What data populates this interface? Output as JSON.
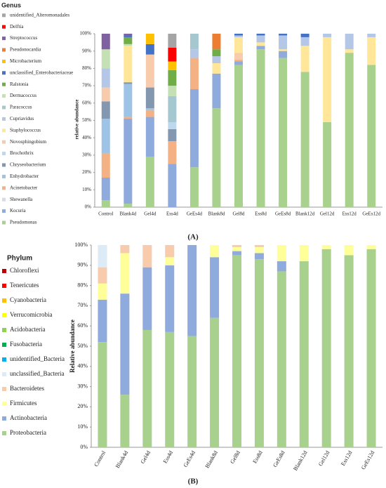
{
  "chart_data": [
    {
      "type": "stacked_bar",
      "legend_title": "Genus",
      "y_label": "relative abundance",
      "panel_label": "(A)",
      "categories": [
        "Control",
        "Blank4d",
        "Gel4d",
        "Ess4d",
        "GeEs4d",
        "Blank8d",
        "Gel8d",
        "Ess8d",
        "GeEs8d",
        "Blank12d",
        "Gel12d",
        "Ess12d",
        "GeEs12d"
      ],
      "ylim": [
        0,
        100
      ],
      "yticks": [
        {
          "value": 0,
          "label": "0%"
        },
        {
          "value": 10,
          "label": "10%"
        },
        {
          "value": 20,
          "label": "20%"
        },
        {
          "value": 30,
          "label": "30%"
        },
        {
          "value": 40,
          "label": "40%"
        },
        {
          "value": 50,
          "label": "50%"
        },
        {
          "value": 60,
          "label": "60%"
        },
        {
          "value": 70,
          "label": "70%"
        },
        {
          "value": 80,
          "label": "80%"
        },
        {
          "value": 90,
          "label": "90%"
        },
        {
          "value": 100,
          "label": "100%"
        }
      ],
      "series": [
        {
          "name": "Pseudomonas",
          "color": "#a9d18e",
          "values": [
            4,
            2,
            29,
            0,
            23,
            57,
            82,
            91,
            86,
            78,
            49,
            89,
            82
          ]
        },
        {
          "name": "Kocuria",
          "color": "#8faadc",
          "values": [
            13,
            49,
            23,
            25,
            45,
            20,
            2,
            2,
            4,
            0,
            0,
            0,
            0
          ]
        },
        {
          "name": "Shewanella",
          "color": "#d6dce5",
          "values": [
            0,
            0,
            0,
            0,
            0,
            0,
            0,
            0,
            0,
            0,
            0,
            0,
            0
          ]
        },
        {
          "name": "Acinetobacter",
          "color": "#f4b183",
          "values": [
            14,
            1,
            4,
            13,
            18,
            0,
            1,
            0,
            0,
            0,
            0,
            0,
            0
          ]
        },
        {
          "name": "Enhydrobacter",
          "color": "#9dc3e6",
          "values": [
            20,
            19,
            1,
            0,
            0,
            0,
            0,
            0,
            0,
            0,
            0,
            0,
            0
          ]
        },
        {
          "name": "Chryseobacterium",
          "color": "#8497b0",
          "values": [
            10,
            1,
            12,
            7,
            0,
            0,
            0,
            0,
            0,
            0,
            0,
            0,
            0
          ]
        },
        {
          "name": "Brochothrix",
          "color": "#bdd7ee",
          "values": [
            0,
            0,
            0,
            4,
            0,
            0,
            0,
            0,
            0,
            0,
            0,
            0,
            0
          ]
        },
        {
          "name": "Novosphingobium",
          "color": "#f8cbad",
          "values": [
            8,
            0,
            19,
            0,
            0,
            0,
            4,
            0,
            0,
            0,
            0,
            0,
            0
          ]
        },
        {
          "name": "Staphylococcus",
          "color": "#ffe699",
          "values": [
            0,
            21,
            0,
            0,
            0,
            6,
            9,
            2,
            1,
            15,
            49,
            2,
            16
          ]
        },
        {
          "name": "Cupriavidus",
          "color": "#b4c7e7",
          "values": [
            11,
            0,
            0,
            0,
            5,
            4,
            1,
            4,
            8,
            5,
            2,
            9,
            2
          ]
        },
        {
          "name": "Paracoccus",
          "color": "#a5c8d0",
          "values": [
            0,
            0,
            0,
            15,
            9,
            0,
            0,
            0,
            0,
            0,
            0,
            0,
            0
          ]
        },
        {
          "name": "Dermacoccus",
          "color": "#c5e0b4",
          "values": [
            11,
            1,
            0,
            6,
            0,
            0,
            0,
            0,
            0,
            0,
            0,
            0,
            0
          ]
        },
        {
          "name": "Ralstonia",
          "color": "#70ad47",
          "values": [
            0,
            4,
            0,
            9,
            0,
            4,
            0,
            0,
            0,
            0,
            0,
            0,
            0
          ]
        },
        {
          "name": "unclassified_Enterobacteriaceae",
          "color": "#4472c4",
          "values": [
            0,
            1,
            6,
            0,
            0,
            0,
            1,
            1,
            1,
            2,
            0,
            0,
            0
          ]
        },
        {
          "name": "Microbacterium",
          "color": "#ffc000",
          "values": [
            0,
            0,
            6,
            5,
            0,
            0,
            0,
            0,
            0,
            0,
            0,
            0,
            0
          ]
        },
        {
          "name": "Pseudonocardia",
          "color": "#ed7d31",
          "values": [
            0,
            0,
            0,
            0,
            0,
            9,
            0,
            0,
            0,
            0,
            0,
            0,
            0
          ]
        },
        {
          "name": "Streptococcus",
          "color": "#7f60a0",
          "values": [
            9,
            1,
            0,
            0,
            0,
            0,
            0,
            0,
            0,
            0,
            0,
            0,
            0
          ]
        },
        {
          "name": "Delftia",
          "color": "#ff0000",
          "values": [
            0,
            0,
            0,
            8,
            0,
            0,
            0,
            0,
            0,
            0,
            0,
            0,
            0
          ]
        },
        {
          "name": "unidentified_Alteromonadales",
          "color": "#a5a5a5",
          "values": [
            0,
            0,
            0,
            8,
            0,
            0,
            0,
            0,
            0,
            0,
            0,
            0,
            0
          ]
        }
      ]
    },
    {
      "type": "stacked_bar",
      "legend_title": "Phylum",
      "y_label": "Relative abundance",
      "panel_label": "(B)",
      "categories": [
        "Control",
        "Blank4d",
        "Gel4d",
        "Ess4d",
        "GeEs4d",
        "Blank8d",
        "Gel8d",
        "Ess8d",
        "GeEs8d",
        "Blank12d",
        "Gel12d",
        "Ess12d",
        "GeEs12d"
      ],
      "ylim": [
        0,
        100
      ],
      "yticks": [
        {
          "value": 0,
          "label": "0%"
        },
        {
          "value": 10,
          "label": "10%"
        },
        {
          "value": 20,
          "label": "20%"
        },
        {
          "value": 30,
          "label": "30%"
        },
        {
          "value": 40,
          "label": "40%"
        },
        {
          "value": 50,
          "label": "50%"
        },
        {
          "value": 60,
          "label": "60%"
        },
        {
          "value": 70,
          "label": "70%"
        },
        {
          "value": 80,
          "label": "80%"
        },
        {
          "value": 90,
          "label": "90%"
        },
        {
          "value": 100,
          "label": "100%"
        }
      ],
      "series": [
        {
          "name": "Proteobacteria",
          "color": "#a9d18e",
          "values": [
            52,
            26,
            58,
            57,
            55,
            64,
            95,
            93,
            87,
            92,
            98,
            95,
            98
          ]
        },
        {
          "name": "Actinobacteria",
          "color": "#8faadc",
          "values": [
            21,
            50,
            31,
            33,
            45,
            30,
            2,
            3,
            5,
            0,
            0,
            0,
            0
          ]
        },
        {
          "name": "Firmicutes",
          "color": "#ffff99",
          "values": [
            8,
            20,
            0,
            4,
            0,
            6,
            2,
            3,
            8,
            8,
            2,
            5,
            2
          ]
        },
        {
          "name": "Bacteroidetes",
          "color": "#f8cbad",
          "values": [
            8,
            4,
            11,
            6,
            0,
            0,
            1,
            1,
            0,
            0,
            0,
            0,
            0
          ]
        },
        {
          "name": "unclassified_Bacteria",
          "color": "#ddebf7",
          "values": [
            11,
            0,
            0,
            0,
            0,
            0,
            0,
            0,
            0,
            0,
            0,
            0,
            0
          ]
        },
        {
          "name": "unidentified_Bacteria",
          "color": "#00b0f0",
          "values": [
            0,
            0,
            0,
            0,
            0,
            0,
            0,
            0,
            0,
            0,
            0,
            0,
            0
          ]
        },
        {
          "name": "Fusobacteria",
          "color": "#00b050",
          "values": [
            0,
            0,
            0,
            0,
            0,
            0,
            0,
            0,
            0,
            0,
            0,
            0,
            0
          ]
        },
        {
          "name": "Acidobacteria",
          "color": "#92d050",
          "values": [
            0,
            0,
            0,
            0,
            0,
            0,
            0,
            0,
            0,
            0,
            0,
            0,
            0
          ]
        },
        {
          "name": "Verrucomicrobia",
          "color": "#ffff00",
          "values": [
            0,
            0,
            0,
            0,
            0,
            0,
            0,
            0,
            0,
            0,
            0,
            0,
            0
          ]
        },
        {
          "name": "Cyanobacteria",
          "color": "#ffc000",
          "values": [
            0,
            0,
            0,
            0,
            0,
            0,
            0,
            0,
            0,
            0,
            0,
            0,
            0
          ]
        },
        {
          "name": "Tenericutes",
          "color": "#ff0000",
          "values": [
            0,
            0,
            0,
            0,
            0,
            0,
            0,
            0,
            0,
            0,
            0,
            0,
            0
          ]
        },
        {
          "name": "Chloroflexi",
          "color": "#c00000",
          "values": [
            0,
            0,
            0,
            0,
            0,
            0,
            0,
            0,
            0,
            0,
            0,
            0,
            0
          ]
        }
      ]
    }
  ]
}
